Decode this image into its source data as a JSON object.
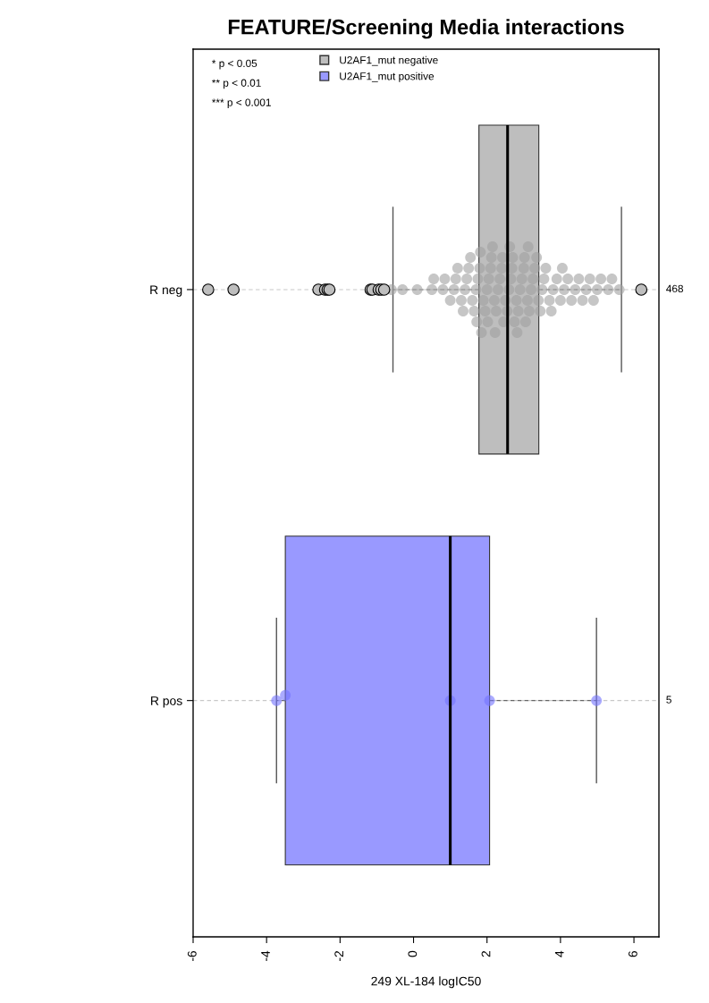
{
  "chart_data": {
    "type": "box",
    "orientation": "horizontal",
    "title": "FEATURE/Screening Media interactions",
    "xlabel": "249 XL-184 logIC50",
    "categories": [
      "R neg",
      "R pos"
    ],
    "xlim": [
      -6,
      6.68
    ],
    "xticks": [
      -6,
      -4,
      -2,
      0,
      2,
      4,
      6
    ],
    "grid": "y",
    "legend": "top left",
    "series": [
      {
        "name": "U2AF1_mut negative",
        "type": "box",
        "color": "#bebebe",
        "boxes": [
          {
            "low": -0.56,
            "q1": 1.78,
            "median": 2.56,
            "q3": 3.41,
            "high": 5.66,
            "outliers": [
              -5.59,
              -4.9,
              -2.59,
              -2.41,
              -2.34,
              -2.29,
              -1.17,
              -1.12,
              -0.95,
              -0.88,
              -0.8,
              6.2
            ]
          },
          null
        ]
      },
      {
        "name": "U2AF1_mut positive",
        "type": "box",
        "color": "#9999ff",
        "boxes": [
          null,
          {
            "low": -3.73,
            "q1": -3.49,
            "median": 1.0,
            "q3": 2.07,
            "high": 4.98
          }
        ]
      },
      {
        "type": "scatter",
        "color": "#a0a0a0",
        "x": [
          "R neg",
          "R neg",
          "R neg",
          "R neg",
          "R neg",
          "R neg",
          "R neg",
          "R neg",
          "R neg",
          "R neg",
          "R neg",
          "R neg",
          "R neg",
          "R neg",
          "R neg",
          "R neg",
          "R neg",
          "R neg",
          "R neg",
          "R neg",
          "R neg",
          "R neg",
          "R neg",
          "R neg",
          "R neg",
          "R neg",
          "R neg",
          "R neg",
          "R neg",
          "R neg",
          "R neg",
          "R neg",
          "R neg",
          "R neg",
          "R neg",
          "R neg",
          "R neg",
          "R neg",
          "R neg",
          "R neg",
          "R neg",
          "R neg",
          "R neg",
          "R neg",
          "R neg",
          "R neg",
          "R neg",
          "R neg",
          "R neg",
          "R neg",
          "R neg",
          "R neg",
          "R neg",
          "R neg",
          "R neg",
          "R neg",
          "R neg",
          "R neg",
          "R neg",
          "R neg",
          "R neg",
          "R neg",
          "R neg",
          "R neg",
          "R neg",
          "R neg",
          "R neg",
          "R neg",
          "R neg",
          "R neg",
          "R neg",
          "R neg",
          "R neg",
          "R neg",
          "R neg",
          "R neg",
          "R neg",
          "R neg",
          "R neg",
          "R neg",
          "R neg",
          "R neg",
          "R neg",
          "R neg",
          "R neg",
          "R neg",
          "R neg",
          "R neg",
          "R neg"
        ],
        "values": [
          -0.6,
          -0.3,
          0.1,
          0.5,
          0.55,
          0.8,
          0.85,
          1.0,
          1.1,
          1.15,
          1.2,
          1.3,
          1.4,
          1.45,
          1.5,
          1.55,
          1.6,
          1.65,
          1.7,
          1.72,
          1.75,
          1.8,
          1.82,
          1.85,
          1.9,
          1.95,
          2.0,
          2.02,
          2.05,
          2.1,
          2.15,
          2.2,
          2.22,
          2.25,
          2.3,
          2.35,
          2.4,
          2.42,
          2.45,
          2.5,
          2.55,
          2.6,
          2.62,
          2.65,
          2.7,
          2.75,
          2.8,
          2.82,
          2.85,
          2.9,
          2.95,
          3.0,
          3.02,
          3.05,
          3.1,
          3.15,
          3.2,
          3.25,
          3.3,
          3.35,
          3.4,
          3.45,
          3.5,
          3.55,
          3.6,
          3.7,
          3.75,
          3.8,
          3.9,
          4.0,
          4.05,
          4.1,
          4.2,
          4.3,
          4.4,
          4.5,
          4.6,
          4.7,
          4.8,
          4.9,
          5.0,
          5.1,
          5.3,
          5.4,
          5.6,
          1.35,
          2.12,
          2.68,
          3.12
        ]
      },
      {
        "type": "scatter",
        "color": "#7373ff",
        "x": [
          "R pos",
          "R pos",
          "R pos",
          "R pos",
          "R pos"
        ],
        "values": [
          -3.73,
          -3.49,
          1.0,
          2.07,
          4.98
        ]
      }
    ],
    "annotations": [
      "* p < 0.05",
      "** p < 0.01",
      "*** p < 0.001",
      "468",
      "5"
    ]
  }
}
